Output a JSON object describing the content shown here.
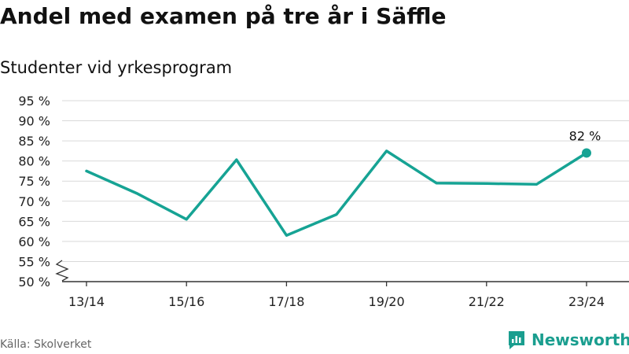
{
  "header": {
    "title": "Andel med examen på tre år i Säffle",
    "subtitle": "Studenter vid yrkesprogram"
  },
  "footer": {
    "source": "Källa: Skolverket",
    "brand": "Newsworthy"
  },
  "colors": {
    "line": "#16a394",
    "grid": "#d9d9d9",
    "axis": "#333333",
    "brand": "#1a9e8f"
  },
  "chart_data": {
    "type": "line",
    "title": "Andel med examen på tre år i Säffle",
    "subtitle": "Studenter vid yrkesprogram",
    "x": [
      "13/14",
      "14/15",
      "15/16",
      "16/17",
      "17/18",
      "18/19",
      "19/20",
      "20/21",
      "21/22",
      "22/23",
      "23/24"
    ],
    "x_tick_labels": [
      "13/14",
      "15/16",
      "17/18",
      "19/20",
      "21/22",
      "23/24"
    ],
    "series": [
      {
        "values": [
          77.5,
          72,
          65.5,
          80.3,
          61.5,
          66.7,
          82.5,
          74.5,
          74.4,
          74.2,
          82
        ]
      }
    ],
    "y_ticks": [
      50,
      55,
      60,
      65,
      70,
      75,
      80,
      85,
      90,
      95
    ],
    "y_tick_labels": [
      "50 %",
      "55 %",
      "60 %",
      "65 %",
      "70 %",
      "75 %",
      "80 %",
      "85 %",
      "90 %",
      "95 %"
    ],
    "ylim": [
      50,
      95
    ],
    "y_axis_break": true,
    "grid": true,
    "last_point_label": "82 %"
  }
}
